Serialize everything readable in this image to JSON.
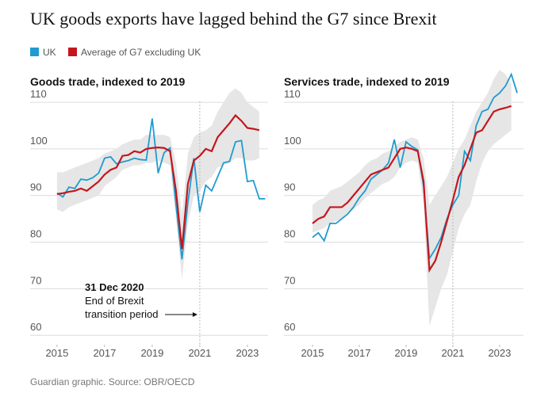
{
  "title": "UK goods exports have lagged behind the G7 since Brexit",
  "source": "Guardian graphic. Source: OBR/OECD",
  "chart_data": [
    {
      "type": "line",
      "title": "Goods trade, indexed to 2019",
      "x": [
        2015,
        2015.25,
        2015.5,
        2015.75,
        2016,
        2016.25,
        2016.5,
        2016.75,
        2017,
        2017.25,
        2017.5,
        2017.75,
        2018,
        2018.25,
        2018.5,
        2018.75,
        2019,
        2019.25,
        2019.5,
        2019.75,
        2020,
        2020.25,
        2020.5,
        2020.75,
        2021,
        2021.25,
        2021.5,
        2021.75,
        2022,
        2022.25,
        2022.5,
        2022.75,
        2023,
        2023.25,
        2023.5,
        2023.75
      ],
      "series": [
        {
          "name": "UK",
          "color": "#1f9bd1",
          "values": [
            90.5,
            89.7,
            91.8,
            91.5,
            93.5,
            93.3,
            93.8,
            94.8,
            98,
            98.3,
            96.8,
            97.2,
            97.5,
            98,
            97.7,
            97.6,
            106.5,
            94.8,
            99.2,
            100.2,
            88,
            76.3,
            88.5,
            98,
            86.5,
            92.2,
            91,
            94,
            97,
            97.3,
            101.5,
            101.8,
            93,
            93.2,
            89.3,
            89.3
          ]
        },
        {
          "name": "Average of G7 excluding UK",
          "color": "#c4161c",
          "values": [
            90.3,
            90.5,
            90.8,
            91,
            91.5,
            91,
            92,
            93,
            94.5,
            95.5,
            96,
            98.5,
            98.7,
            99.5,
            99.2,
            100,
            100.2,
            100.3,
            100.2,
            99.5,
            91,
            78.5,
            92.5,
            97.5,
            98.5,
            100,
            99.5,
            102.5,
            104,
            105.5,
            107.2,
            106,
            104.5,
            104.3,
            104,
            null
          ]
        }
      ],
      "range": {
        "color": "#e6e6e6",
        "low": [
          87,
          86.5,
          87.5,
          88,
          88.5,
          89,
          89.5,
          90,
          92,
          93,
          94,
          95.5,
          96,
          96.5,
          96.5,
          97,
          97,
          97.5,
          97,
          96.5,
          85,
          72,
          84,
          90,
          91,
          93,
          94,
          96,
          96.5,
          97,
          98,
          98,
          97.5,
          97.5,
          98,
          null
        ],
        "high": [
          95,
          95,
          95.5,
          96,
          96.5,
          97,
          97.5,
          98,
          99,
          99.5,
          100,
          101,
          101.5,
          102,
          102,
          103,
          103,
          103,
          103,
          102.5,
          97,
          86,
          99,
          102.5,
          103.5,
          104,
          105,
          108,
          110,
          112,
          113,
          112,
          110,
          109,
          108,
          null
        ]
      },
      "xlim": [
        2013.87,
        2023.87
      ],
      "ylim": [
        58,
        118
      ],
      "xticks": [
        2015,
        2017,
        2019,
        2021,
        2023
      ],
      "yticks": [
        60,
        70,
        80,
        90,
        100,
        110
      ],
      "vline": 2021,
      "annotation": [
        "31 Dec 2020",
        "End of Brexit",
        "transition period"
      ]
    },
    {
      "type": "line",
      "title": "Services trade, indexed to 2019",
      "x": [
        2015,
        2015.25,
        2015.5,
        2015.75,
        2016,
        2016.25,
        2016.5,
        2016.75,
        2017,
        2017.25,
        2017.5,
        2017.75,
        2018,
        2018.25,
        2018.5,
        2018.75,
        2019,
        2019.25,
        2019.5,
        2019.75,
        2020,
        2020.25,
        2020.5,
        2020.75,
        2021,
        2021.25,
        2021.5,
        2021.75,
        2022,
        2022.25,
        2022.5,
        2022.75,
        2023,
        2023.25,
        2023.5,
        2023.75
      ],
      "series": [
        {
          "color": "#1f9bd1",
          "values": [
            81,
            82,
            80.3,
            84,
            84,
            85,
            86,
            87.5,
            89.5,
            91,
            93.5,
            94.5,
            95.5,
            97,
            102,
            96,
            101.5,
            100.5,
            99.8,
            92,
            76.5,
            78.5,
            81,
            85,
            88,
            90,
            99.5,
            97.5,
            105,
            108,
            108.5,
            111,
            112,
            113.5,
            116,
            112
          ]
        },
        {
          "color": "#c4161c",
          "values": [
            84,
            85,
            85.5,
            87.5,
            87.5,
            87.5,
            88.5,
            90,
            91.5,
            93,
            94.5,
            95,
            95.5,
            96,
            98,
            100,
            100.3,
            100,
            99.5,
            93,
            74,
            76,
            80,
            84.5,
            89,
            94,
            96.5,
            100,
            103.5,
            104,
            106,
            108,
            108.5,
            108.8,
            109.2,
            null
          ]
        }
      ],
      "range": {
        "color": "#e6e6e6",
        "low": [
          82,
          82.5,
          83,
          84,
          84.5,
          85,
          86,
          87,
          88,
          89.5,
          90.5,
          91.5,
          92.5,
          93,
          94,
          96,
          97,
          97.5,
          97,
          88,
          62,
          66,
          70,
          73,
          78,
          83,
          86,
          88,
          93,
          97,
          99.5,
          101,
          102,
          103,
          104,
          null
        ],
        "high": [
          88,
          89,
          89.5,
          91,
          91.5,
          92,
          93,
          94,
          95,
          96.5,
          97.5,
          98,
          99,
          99.5,
          100.5,
          101.5,
          102,
          102.5,
          102,
          98,
          88,
          90,
          92,
          94,
          97,
          100,
          102,
          105,
          108,
          110,
          112,
          115,
          117,
          116,
          114,
          null
        ]
      },
      "xlim": [
        2013.78,
        2024.02
      ],
      "ylim": [
        58,
        118
      ],
      "xticks": [
        2015,
        2017,
        2019,
        2021,
        2023
      ],
      "yticks": [
        60,
        70,
        80,
        90,
        100,
        110
      ],
      "vline": 2021
    }
  ]
}
